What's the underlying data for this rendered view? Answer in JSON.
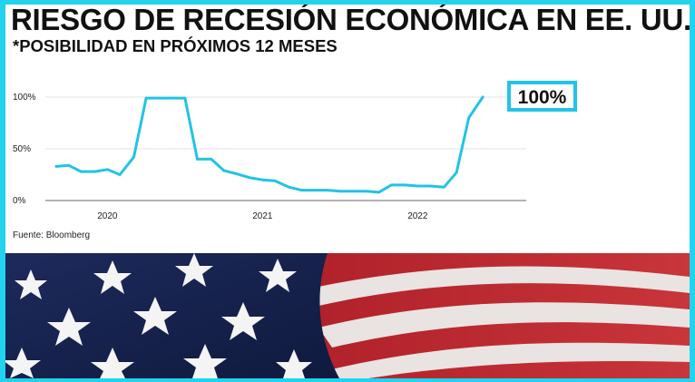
{
  "title": "RIESGO DE RECESIÓN ECONÓMICA EN EE. UU.",
  "subtitle": "*POSIBILIDAD EN PRÓXIMOS 12 MESES",
  "source": "Fuente: Bloomberg",
  "colors": {
    "accent": "#22c3e6",
    "frame": "#22d3ee",
    "text": "#111111"
  },
  "chart_data": {
    "type": "line",
    "x_tick_labels": [
      "2020",
      "2021",
      "2022"
    ],
    "y_tick_labels": [
      "100%",
      "50%",
      "0%"
    ],
    "ylim": [
      0,
      100
    ],
    "xlim": [
      2019.6,
      2022.7
    ],
    "callout": "100%",
    "grid": "horizontal",
    "series": [
      {
        "x": [
          2019.67,
          2019.75,
          2019.83,
          2019.92,
          2020.0,
          2020.08,
          2020.17,
          2020.25,
          2020.33,
          2020.42,
          2020.5,
          2020.58,
          2020.67,
          2020.75,
          2020.83,
          2020.92,
          2021.0,
          2021.08,
          2021.17,
          2021.25,
          2021.33,
          2021.42,
          2021.5,
          2021.58,
          2021.67,
          2021.75,
          2021.83,
          2021.92,
          2022.0,
          2022.08,
          2022.17,
          2022.25,
          2022.33,
          2022.42
        ],
        "y": [
          33,
          34,
          28,
          28,
          30,
          25,
          42,
          99,
          99,
          99,
          99,
          40,
          40,
          29,
          26,
          22,
          20,
          19,
          13,
          10,
          10,
          10,
          9,
          9,
          9,
          8,
          15,
          15,
          14,
          14,
          13,
          27,
          80,
          100
        ]
      }
    ]
  }
}
